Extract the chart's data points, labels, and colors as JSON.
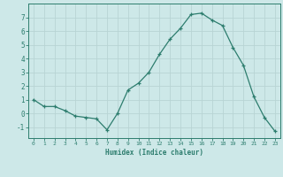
{
  "x": [
    0,
    1,
    2,
    3,
    4,
    5,
    6,
    7,
    8,
    9,
    10,
    11,
    12,
    13,
    14,
    15,
    16,
    17,
    18,
    19,
    20,
    21,
    22,
    23
  ],
  "y": [
    1.0,
    0.5,
    0.5,
    0.2,
    -0.2,
    -0.3,
    -0.4,
    -1.2,
    0.0,
    1.7,
    2.2,
    3.0,
    4.3,
    5.4,
    6.2,
    7.2,
    7.3,
    6.8,
    6.4,
    4.8,
    3.5,
    1.2,
    -0.3,
    -1.3
  ],
  "xlabel": "Humidex (Indice chaleur)",
  "ylim": [
    -1.8,
    8.0
  ],
  "yticks": [
    -1,
    0,
    1,
    2,
    3,
    4,
    5,
    6,
    7
  ],
  "xticks": [
    0,
    1,
    2,
    3,
    4,
    5,
    6,
    7,
    8,
    9,
    10,
    11,
    12,
    13,
    14,
    15,
    16,
    17,
    18,
    19,
    20,
    21,
    22,
    23
  ],
  "line_color": "#2d7d6e",
  "marker": "+",
  "bg_color": "#cde8e8",
  "grid_color": "#b8d4d4",
  "axis_color": "#2d7d6e",
  "xlabel_color": "#2d7d6e",
  "tick_color": "#2d7d6e",
  "font_family": "monospace"
}
